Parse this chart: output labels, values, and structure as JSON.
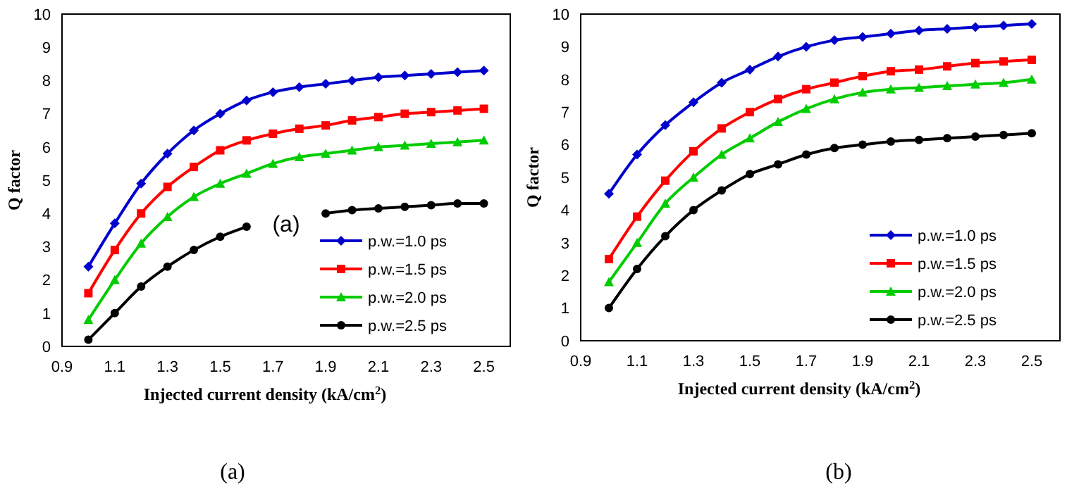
{
  "chart_data": [
    {
      "type": "line",
      "xlabel": "Injected current density (kA/cm$^{2}$)",
      "ylabel": "Q factor",
      "x": [
        1.0,
        1.1,
        1.2,
        1.3,
        1.4,
        1.5,
        1.6,
        1.7,
        1.8,
        1.9,
        2.0,
        2.1,
        2.2,
        2.3,
        2.4,
        2.5
      ],
      "xlim": [
        0.9,
        2.6
      ],
      "xticks": [
        0.9,
        1.1,
        1.3,
        1.5,
        1.7,
        1.9,
        2.1,
        2.3,
        2.5
      ],
      "ylim": [
        0,
        10
      ],
      "yticks": [
        0,
        1,
        2,
        3,
        4,
        5,
        6,
        7,
        8,
        9,
        10
      ],
      "grid": false,
      "legend": "bottom right",
      "series": [
        {
          "name": "p.w.=1.0 ps",
          "color": "#0000cc",
          "marker": "diamond",
          "values": [
            2.4,
            3.7,
            4.9,
            5.8,
            6.5,
            7.0,
            7.4,
            7.65,
            7.8,
            7.9,
            8.0,
            8.1,
            8.15,
            8.2,
            8.25,
            8.3
          ]
        },
        {
          "name": "p.w.=1.5 ps",
          "color": "#ff0000",
          "marker": "square",
          "values": [
            1.6,
            2.9,
            4.0,
            4.8,
            5.4,
            5.9,
            6.2,
            6.4,
            6.55,
            6.65,
            6.8,
            6.9,
            7.0,
            7.05,
            7.1,
            7.15
          ]
        },
        {
          "name": "p.w.=2.0 ps",
          "color": "#00cc00",
          "marker": "triangle",
          "values": [
            0.8,
            2.0,
            3.1,
            3.9,
            4.5,
            4.9,
            5.2,
            5.5,
            5.7,
            5.8,
            5.9,
            6.0,
            6.05,
            6.1,
            6.15,
            6.2
          ]
        },
        {
          "name": "p.w.=2.5 ps",
          "color": "#000000",
          "marker": "circle",
          "values": [
            0.2,
            1.0,
            1.8,
            2.4,
            2.9,
            3.3,
            3.6,
            null,
            null,
            4.0,
            4.1,
            4.15,
            4.2,
            4.25,
            4.3,
            4.3
          ]
        }
      ],
      "annotations": [
        "(a)",
        "(a)"
      ]
    },
    {
      "type": "line",
      "xlabel": "Injected current density (kA/cm$^{2}$)",
      "ylabel": "Q factor",
      "x": [
        1.0,
        1.1,
        1.2,
        1.3,
        1.4,
        1.5,
        1.6,
        1.7,
        1.8,
        1.9,
        2.0,
        2.1,
        2.2,
        2.3,
        2.4,
        2.5
      ],
      "xlim": [
        0.9,
        2.6
      ],
      "xticks": [
        0.9,
        1.1,
        1.3,
        1.5,
        1.7,
        1.9,
        2.1,
        2.3,
        2.5
      ],
      "ylim": [
        0,
        10
      ],
      "yticks": [
        0,
        1,
        2,
        3,
        4,
        5,
        6,
        7,
        8,
        9,
        10
      ],
      "grid": false,
      "legend": "bottom right",
      "series": [
        {
          "name": "p.w.=1.0 ps",
          "color": "#0000cc",
          "marker": "diamond",
          "values": [
            4.5,
            5.7,
            6.6,
            7.3,
            7.9,
            8.3,
            8.7,
            9.0,
            9.2,
            9.3,
            9.4,
            9.5,
            9.55,
            9.6,
            9.65,
            9.7
          ]
        },
        {
          "name": "p.w.=1.5 ps",
          "color": "#ff0000",
          "marker": "square",
          "values": [
            2.5,
            3.8,
            4.9,
            5.8,
            6.5,
            7.0,
            7.4,
            7.7,
            7.9,
            8.1,
            8.25,
            8.3,
            8.4,
            8.5,
            8.55,
            8.6
          ]
        },
        {
          "name": "p.w.=2.0 ps",
          "color": "#00cc00",
          "marker": "triangle",
          "values": [
            1.8,
            3.0,
            4.2,
            5.0,
            5.7,
            6.2,
            6.7,
            7.1,
            7.4,
            7.6,
            7.7,
            7.75,
            7.8,
            7.85,
            7.9,
            8.0
          ]
        },
        {
          "name": "p.w.=2.5 ps",
          "color": "#000000",
          "marker": "circle",
          "values": [
            1.0,
            2.2,
            3.2,
            4.0,
            4.6,
            5.1,
            5.4,
            5.7,
            5.9,
            6.0,
            6.1,
            6.15,
            6.2,
            6.25,
            6.3,
            6.35
          ]
        }
      ],
      "annotations": [
        "(b)"
      ]
    }
  ]
}
